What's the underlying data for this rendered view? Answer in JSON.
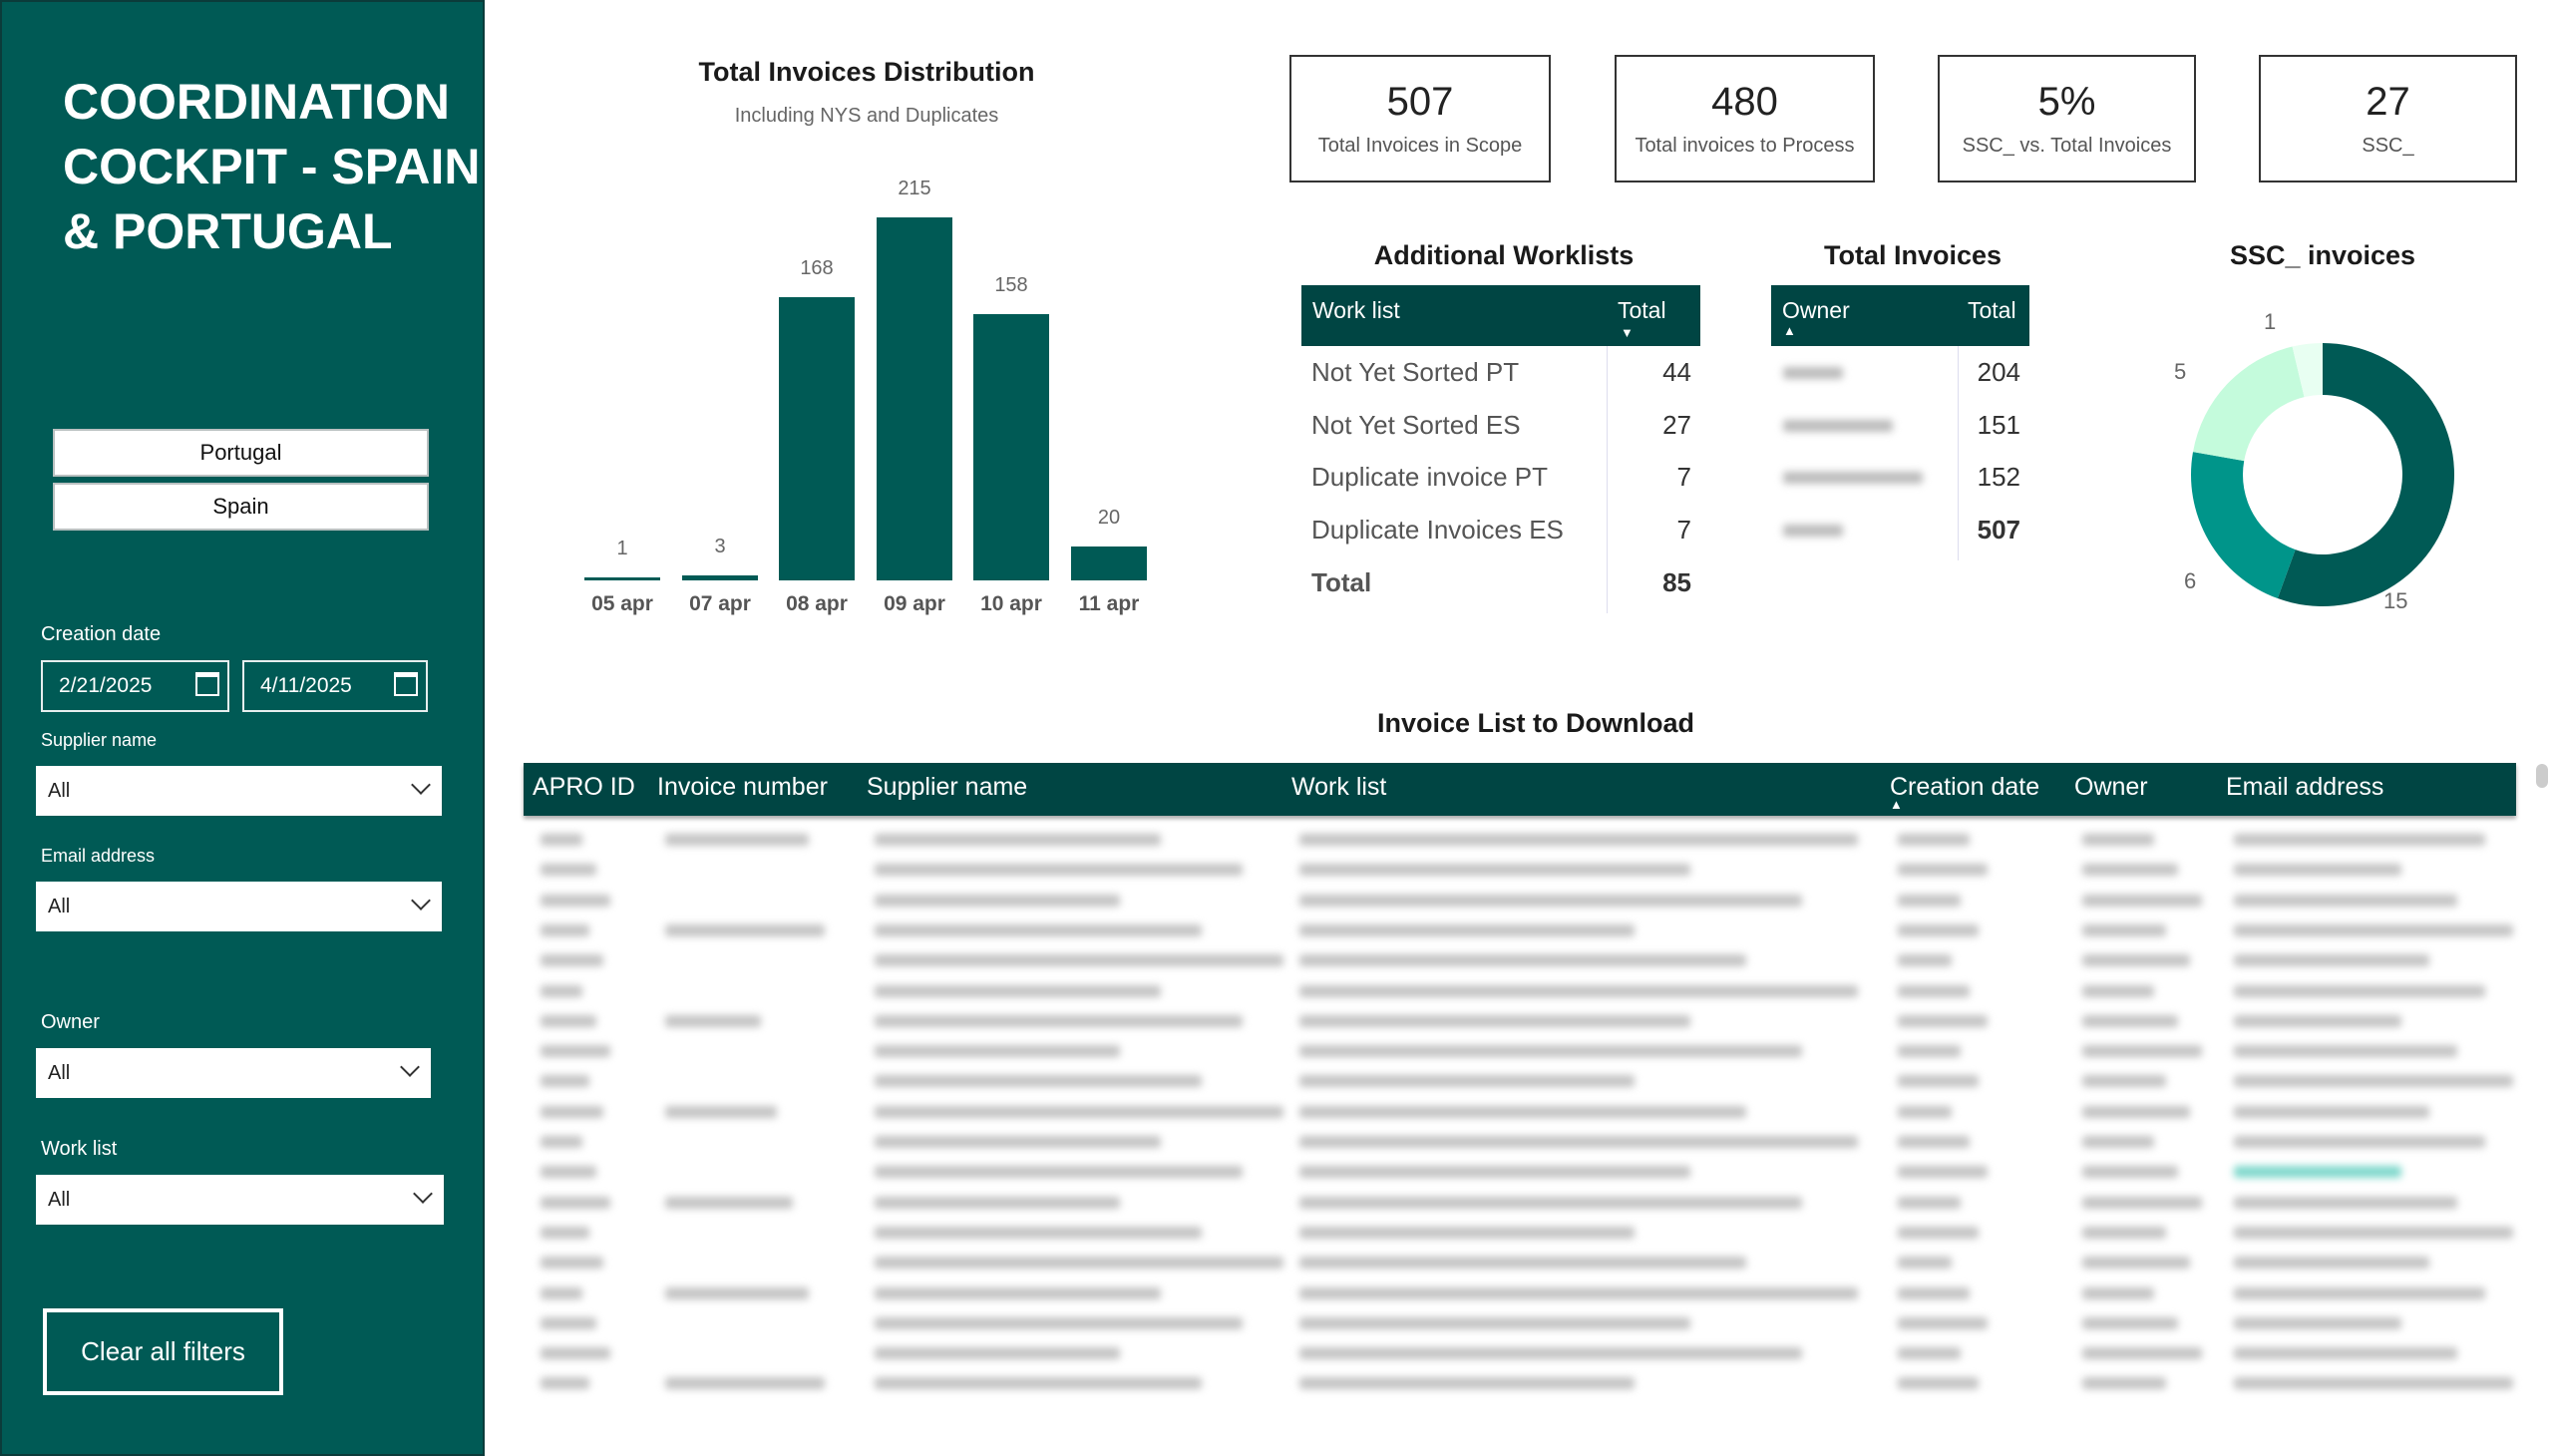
{
  "sidebar": {
    "title": "COORDINATION COCKPIT - SPAIN & PORTUGAL",
    "country_buttons": [
      "Portugal",
      "Spain"
    ],
    "creation_date_label": "Creation date",
    "date_from": "2/21/2025",
    "date_to": "4/11/2025",
    "supplier_label": "Supplier name",
    "supplier_value": "All",
    "email_label": "Email address",
    "email_value": "All",
    "owner_label": "Owner",
    "owner_value": "All",
    "worklist_label": "Work list",
    "worklist_value": "All",
    "clear_label": "Clear all filters"
  },
  "chart_data": {
    "type": "bar",
    "title": "Total Invoices Distribution",
    "subtitle": "Including NYS and Duplicates",
    "categories": [
      "05 apr",
      "07 apr",
      "08 apr",
      "09 apr",
      "10 apr",
      "11 apr"
    ],
    "values": [
      1,
      3,
      168,
      215,
      158,
      20
    ],
    "color": "#005a55",
    "ylim": [
      0,
      215
    ]
  },
  "kpis": [
    {
      "value": "507",
      "label": "Total Invoices in Scope"
    },
    {
      "value": "480",
      "label": "Total invoices to Process"
    },
    {
      "value": "5%",
      "label": "SSC_ vs. Total Invoices"
    },
    {
      "value": "27",
      "label": "SSC_"
    }
  ],
  "worklists": {
    "title": "Additional Worklists",
    "headers": [
      "Work list",
      "Total"
    ],
    "rows": [
      [
        "Not Yet Sorted PT",
        "44"
      ],
      [
        "Not Yet Sorted ES",
        "27"
      ],
      [
        "Duplicate invoice PT",
        "7"
      ],
      [
        "Duplicate Invoices ES",
        "7"
      ]
    ],
    "total_label": "Total",
    "total": "85"
  },
  "owners": {
    "title": "Total Invoices",
    "headers": [
      "Owner",
      "Total"
    ],
    "values": [
      "204",
      "151",
      "152"
    ],
    "total": "507"
  },
  "donut": {
    "title": "SSC_ invoices",
    "values": [
      15,
      6,
      5,
      1
    ],
    "labels": [
      "15",
      "6",
      "5",
      "1"
    ],
    "colors": [
      "#005a55",
      "#00958a",
      "#c4fbdc",
      "#e8fff2"
    ]
  },
  "invoice_list": {
    "title": "Invoice List to Download",
    "headers": [
      "APRO ID",
      "Invoice number",
      "Supplier name",
      "Work list",
      "Creation date",
      "Owner",
      "Email address"
    ]
  }
}
